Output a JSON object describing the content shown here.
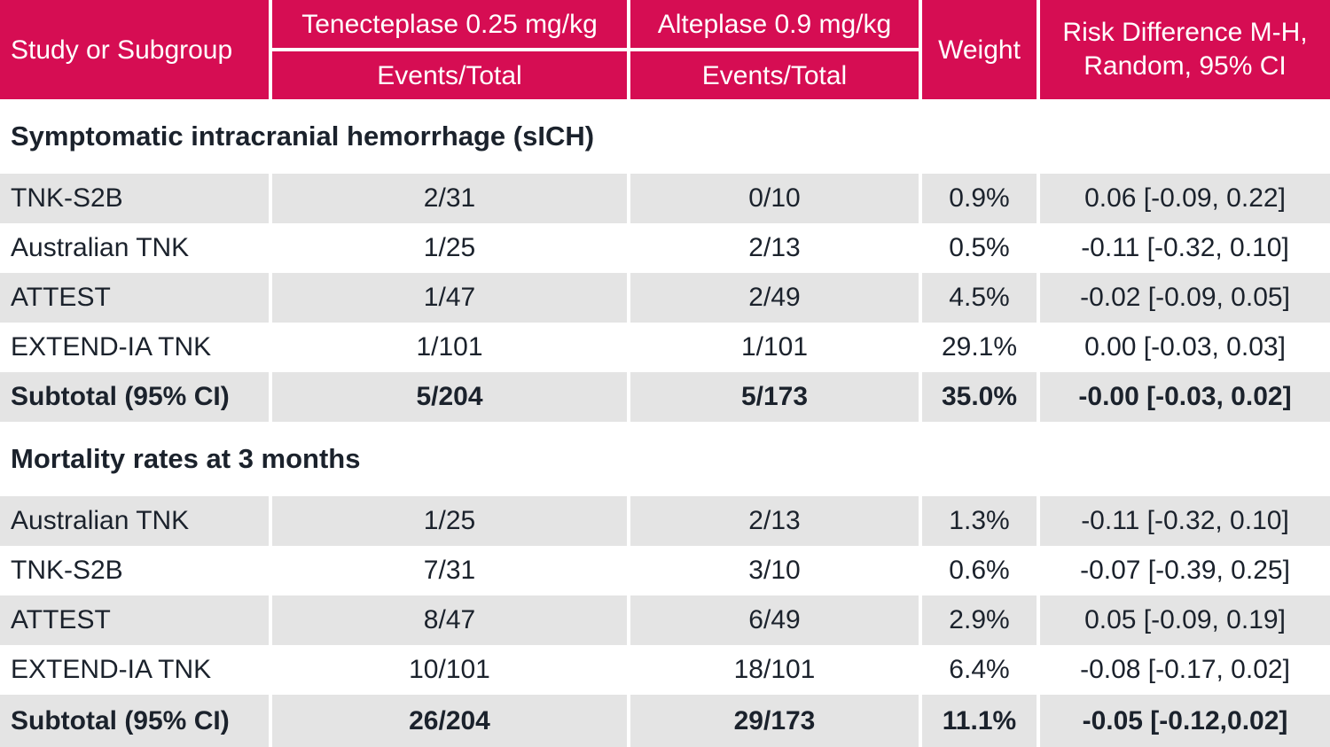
{
  "colors": {
    "header_bg": "#d60d53",
    "row_alt_bg": "#e4e4e4",
    "text": "#1b222c",
    "header_text": "#ffffff"
  },
  "chart_data": {
    "type": "table",
    "header": {
      "study": "Study or Subgroup",
      "group1_label": "Tenecteplase 0.25 mg/kg",
      "group1_sub": "Events/Total",
      "group2_label": "Alteplase 0.9 mg/kg",
      "group2_sub": "Events/Total",
      "weight": "Weight",
      "risk_line1": "Risk Difference M-H,",
      "risk_line2": "Random, 95% CI"
    },
    "sections": [
      {
        "title": "Symptomatic intracranial hemorrhage (sICH)",
        "rows": [
          {
            "study": "TNK-S2B",
            "tnk": "2/31",
            "alt": "0/10",
            "weight": "0.9%",
            "rd": "0.06 [-0.09, 0.22]"
          },
          {
            "study": "Australian TNK",
            "tnk": "1/25",
            "alt": "2/13",
            "weight": "0.5%",
            "rd": "-0.11 [-0.32, 0.10]"
          },
          {
            "study": "ATTEST",
            "tnk": "1/47",
            "alt": "2/49",
            "weight": "4.5%",
            "rd": "-0.02 [-0.09, 0.05]"
          },
          {
            "study": "EXTEND-IA TNK",
            "tnk": "1/101",
            "alt": "1/101",
            "weight": "29.1%",
            "rd": "0.00 [-0.03, 0.03]"
          },
          {
            "study": "Subtotal (95% CI)",
            "tnk": "5/204",
            "alt": "5/173",
            "weight": "35.0%",
            "rd": "-0.00 [-0.03, 0.02]",
            "subtotal": true
          }
        ]
      },
      {
        "title": "Mortality rates at 3 months",
        "rows": [
          {
            "study": "Australian TNK",
            "tnk": "1/25",
            "alt": "2/13",
            "weight": "1.3%",
            "rd": "-0.11 [-0.32, 0.10]"
          },
          {
            "study": "TNK-S2B",
            "tnk": "7/31",
            "alt": "3/10",
            "weight": "0.6%",
            "rd": "-0.07 [-0.39, 0.25]"
          },
          {
            "study": "ATTEST",
            "tnk": "8/47",
            "alt": "6/49",
            "weight": "2.9%",
            "rd": "0.05 [-0.09, 0.19]"
          },
          {
            "study": "EXTEND-IA TNK",
            "tnk": "10/101",
            "alt": "18/101",
            "weight": "6.4%",
            "rd": "-0.08 [-0.17, 0.02]"
          },
          {
            "study": "Subtotal (95% CI)",
            "tnk": "26/204",
            "alt": "29/173",
            "weight": "11.1%",
            "rd": "-0.05 [-0.12,0.02]",
            "subtotal": true
          }
        ]
      }
    ]
  }
}
